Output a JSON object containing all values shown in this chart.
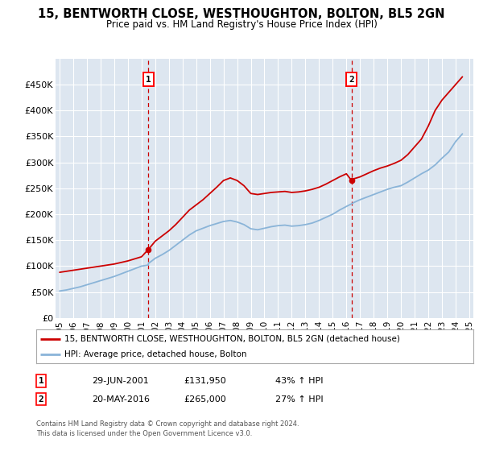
{
  "title": "15, BENTWORTH CLOSE, WESTHOUGHTON, BOLTON, BL5 2GN",
  "subtitle": "Price paid vs. HM Land Registry's House Price Index (HPI)",
  "bg_color": "#dde6f0",
  "plot_bg_color": "#dde6f0",
  "grid_color": "#ffffff",
  "hpi_color": "#8ab4d8",
  "price_color": "#cc0000",
  "dashed_color": "#cc0000",
  "legend_label_price": "15, BENTWORTH CLOSE, WESTHOUGHTON, BOLTON, BL5 2GN (detached house)",
  "legend_label_hpi": "HPI: Average price, detached house, Bolton",
  "transaction1_date": "29-JUN-2001",
  "transaction1_price": "£131,950",
  "transaction1_hpi": "43% ↑ HPI",
  "transaction1_year": 2001.49,
  "transaction1_value": 131950,
  "transaction2_date": "20-MAY-2016",
  "transaction2_price": "£265,000",
  "transaction2_hpi": "27% ↑ HPI",
  "transaction2_year": 2016.38,
  "transaction2_value": 265000,
  "footer": "Contains HM Land Registry data © Crown copyright and database right 2024.\nThis data is licensed under the Open Government Licence v3.0.",
  "years": [
    1995.0,
    1995.5,
    1996.0,
    1996.5,
    1997.0,
    1997.5,
    1998.0,
    1998.5,
    1999.0,
    1999.5,
    2000.0,
    2000.5,
    2001.0,
    2001.49,
    2001.5,
    2002.0,
    2002.5,
    2003.0,
    2003.5,
    2004.0,
    2004.5,
    2005.0,
    2005.5,
    2006.0,
    2006.5,
    2007.0,
    2007.5,
    2008.0,
    2008.5,
    2009.0,
    2009.5,
    2010.0,
    2010.5,
    2011.0,
    2011.5,
    2012.0,
    2012.5,
    2013.0,
    2013.5,
    2014.0,
    2014.5,
    2015.0,
    2015.5,
    2016.0,
    2016.38,
    2016.5,
    2017.0,
    2017.5,
    2018.0,
    2018.5,
    2019.0,
    2019.5,
    2020.0,
    2020.5,
    2021.0,
    2021.5,
    2022.0,
    2022.5,
    2023.0,
    2023.5,
    2024.0,
    2024.5
  ],
  "hpi_values": [
    52000,
    54000,
    57000,
    60000,
    64000,
    68000,
    72000,
    76000,
    80000,
    85000,
    90000,
    95000,
    100000,
    102000,
    105000,
    115000,
    122000,
    130000,
    140000,
    150000,
    160000,
    168000,
    173000,
    178000,
    182000,
    186000,
    188000,
    185000,
    180000,
    172000,
    170000,
    173000,
    176000,
    178000,
    179000,
    177000,
    178000,
    180000,
    183000,
    188000,
    194000,
    200000,
    208000,
    215000,
    220000,
    222000,
    228000,
    233000,
    238000,
    243000,
    248000,
    252000,
    255000,
    262000,
    270000,
    278000,
    285000,
    295000,
    308000,
    320000,
    340000,
    355000
  ],
  "price_values": [
    88000,
    90000,
    92000,
    94000,
    96000,
    98000,
    100000,
    102000,
    104000,
    107000,
    110000,
    114000,
    118000,
    131950,
    132000,
    148000,
    158000,
    168000,
    180000,
    194000,
    208000,
    218000,
    228000,
    240000,
    252000,
    265000,
    270000,
    265000,
    255000,
    240000,
    238000,
    240000,
    242000,
    243000,
    244000,
    242000,
    243000,
    245000,
    248000,
    252000,
    258000,
    265000,
    272000,
    278000,
    265000,
    268000,
    272000,
    278000,
    284000,
    289000,
    293000,
    298000,
    304000,
    315000,
    330000,
    345000,
    370000,
    400000,
    420000,
    435000,
    450000,
    465000
  ],
  "ylim": [
    0,
    500000
  ],
  "yticks": [
    0,
    50000,
    100000,
    150000,
    200000,
    250000,
    300000,
    350000,
    400000,
    450000
  ],
  "ytick_labels": [
    "£0",
    "£50K",
    "£100K",
    "£150K",
    "£200K",
    "£250K",
    "£300K",
    "£350K",
    "£400K",
    "£450K"
  ],
  "xtick_years": [
    1995,
    1996,
    1997,
    1998,
    1999,
    2000,
    2001,
    2002,
    2003,
    2004,
    2005,
    2006,
    2007,
    2008,
    2009,
    2010,
    2011,
    2012,
    2013,
    2014,
    2015,
    2016,
    2017,
    2018,
    2019,
    2020,
    2021,
    2022,
    2023,
    2024,
    2025
  ]
}
